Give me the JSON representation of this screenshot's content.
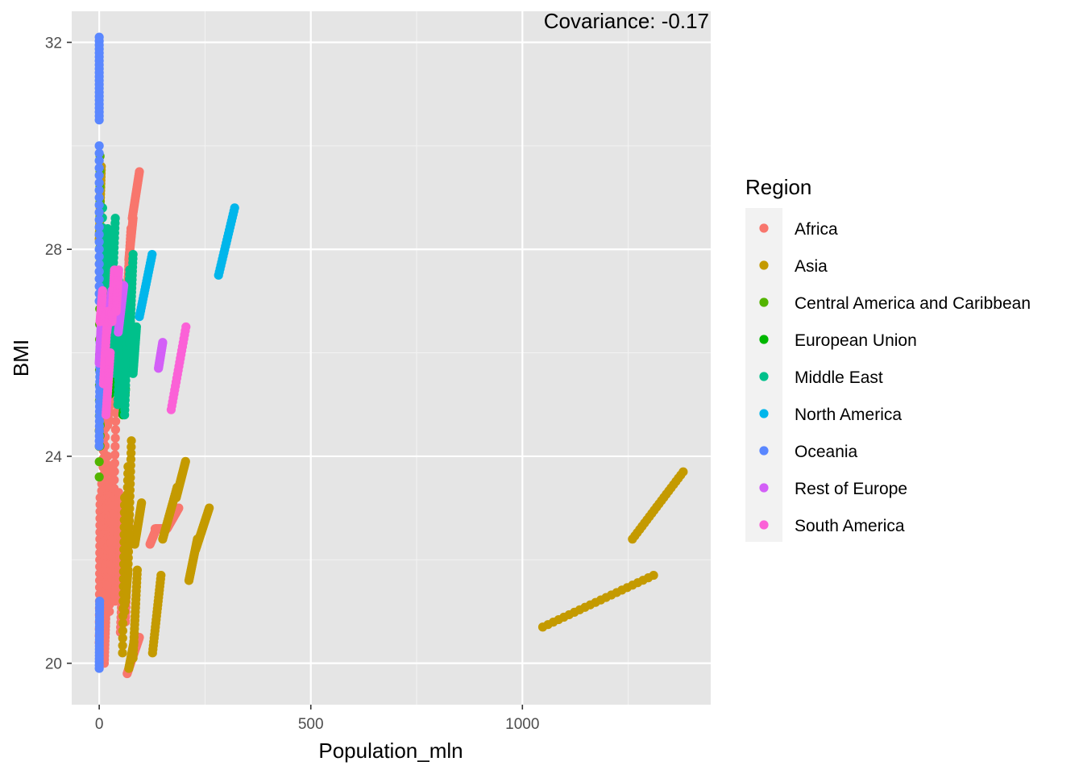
{
  "chart_data": {
    "type": "scatter",
    "title": "",
    "xlabel": "Population_mln",
    "ylabel": "BMI",
    "xlim": [
      -65,
      1445
    ],
    "ylim": [
      19.2,
      32.6
    ],
    "x_ticks": [
      0,
      500,
      1000
    ],
    "x_tick_labels": [
      "0",
      "500",
      "1000"
    ],
    "y_ticks": [
      20,
      24,
      28,
      32
    ],
    "y_tick_labels": [
      "20",
      "24",
      "28",
      "32"
    ],
    "grid": true,
    "panel_background": "#e5e5e5",
    "annotation": "Covariance: -0.17",
    "legend": {
      "title": "Region",
      "placement": "right"
    },
    "series": [
      {
        "name": "Africa",
        "color": "#F8766D",
        "segments": [
          {
            "x": [
              0,
              2
            ],
            "y": [
              20.4,
              23.2
            ]
          },
          {
            "x": [
              3,
              6
            ],
            "y": [
              20.8,
              23.6
            ]
          },
          {
            "x": [
              6,
              10
            ],
            "y": [
              21.2,
              24.6
            ]
          },
          {
            "x": [
              10,
              16
            ],
            "y": [
              21.8,
              25.4
            ]
          },
          {
            "x": [
              14,
              20
            ],
            "y": [
              20.6,
              24.0
            ]
          },
          {
            "x": [
              18,
              24
            ],
            "y": [
              21.4,
              23.4
            ]
          },
          {
            "x": [
              24,
              32
            ],
            "y": [
              21.0,
              23.8
            ]
          },
          {
            "x": [
              30,
              40
            ],
            "y": [
              21.6,
              25.0
            ]
          },
          {
            "x": [
              38,
              46
            ],
            "y": [
              21.2,
              23.3
            ]
          },
          {
            "x": [
              45,
              55
            ],
            "y": [
              21.4,
              23.2
            ]
          },
          {
            "x": [
              50,
              60
            ],
            "y": [
              20.6,
              22.6
            ]
          },
          {
            "x": [
              56,
              66
            ],
            "y": [
              21.8,
              23.0
            ]
          },
          {
            "x": [
              62,
              70
            ],
            "y": [
              20.8,
              22.8
            ]
          },
          {
            "x": [
              10,
              22
            ],
            "y": [
              25.0,
              26.8
            ]
          },
          {
            "x": [
              20,
              34
            ],
            "y": [
              24.6,
              26.2
            ]
          },
          {
            "x": [
              25,
              35
            ],
            "y": [
              25.6,
              27.4
            ]
          },
          {
            "x": [
              65,
              75
            ],
            "y": [
              27.0,
              28.4
            ]
          },
          {
            "x": [
              70,
              80
            ],
            "y": [
              27.8,
              28.6
            ]
          },
          {
            "x": [
              78,
              95
            ],
            "y": [
              28.6,
              29.5
            ]
          },
          {
            "x": [
              66,
              95
            ],
            "y": [
              19.8,
              20.5
            ]
          },
          {
            "x": [
              120,
              135
            ],
            "y": [
              22.3,
              22.6
            ]
          },
          {
            "x": [
              132,
              150
            ],
            "y": [
              22.6,
              22.6
            ]
          },
          {
            "x": [
              160,
              188
            ],
            "y": [
              22.6,
              23.0
            ]
          },
          {
            "x": [
              12,
              18
            ],
            "y": [
              20.0,
              21.5
            ]
          }
        ]
      },
      {
        "name": "Asia",
        "color": "#C49A00",
        "segments": [
          {
            "x": [
              55,
              60
            ],
            "y": [
              20.2,
              23.2
            ]
          },
          {
            "x": [
              60,
              68
            ],
            "y": [
              21.0,
              23.8
            ]
          },
          {
            "x": [
              62,
              68
            ],
            "y": [
              21.2,
              21.8
            ]
          },
          {
            "x": [
              68,
              76
            ],
            "y": [
              21.8,
              24.3
            ]
          },
          {
            "x": [
              70,
              82
            ],
            "y": [
              19.9,
              20.4
            ]
          },
          {
            "x": [
              80,
              90
            ],
            "y": [
              20.1,
              21.8
            ]
          },
          {
            "x": [
              84,
              100
            ],
            "y": [
              22.3,
              23.1
            ]
          },
          {
            "x": [
              126,
              146
            ],
            "y": [
              20.2,
              21.7
            ]
          },
          {
            "x": [
              150,
              184
            ],
            "y": [
              22.4,
              23.4
            ]
          },
          {
            "x": [
              182,
              204
            ],
            "y": [
              23.2,
              23.9
            ]
          },
          {
            "x": [
              212,
              232
            ],
            "y": [
              21.6,
              22.4
            ]
          },
          {
            "x": [
              228,
              260
            ],
            "y": [
              22.2,
              23.0
            ]
          },
          {
            "x": [
              1048,
              1310
            ],
            "y": [
              20.7,
              21.7
            ]
          },
          {
            "x": [
              1260,
              1380
            ],
            "y": [
              22.4,
              23.7
            ]
          },
          {
            "x": [
              0,
              40
            ],
            "y": [
              24.5,
              27.4
            ]
          },
          {
            "x": [
              20,
              60
            ],
            "y": [
              25.2,
              26.8
            ]
          },
          {
            "x": [
              0,
              5
            ],
            "y": [
              28.2,
              29.6
            ]
          }
        ]
      },
      {
        "name": "Central America and Caribbean",
        "color": "#53B400",
        "segments": [
          {
            "x": [
              0,
              2
            ],
            "y": [
              23.6,
              29.8
            ]
          },
          {
            "x": [
              2,
              6
            ],
            "y": [
              24.2,
              28.4
            ]
          },
          {
            "x": [
              5,
              12
            ],
            "y": [
              25.4,
              27.6
            ]
          },
          {
            "x": [
              10,
              18
            ],
            "y": [
              26.0,
              27.4
            ]
          }
        ]
      },
      {
        "name": "European Union",
        "color": "#00B700",
        "segments": [
          {
            "x": [
              5,
              12
            ],
            "y": [
              25.0,
              27.4
            ]
          },
          {
            "x": [
              8,
              18
            ],
            "y": [
              25.4,
              26.8
            ]
          },
          {
            "x": [
              14,
              30
            ],
            "y": [
              25.6,
              27.0
            ]
          },
          {
            "x": [
              25,
              40
            ],
            "y": [
              25.2,
              26.4
            ]
          },
          {
            "x": [
              36,
              52
            ],
            "y": [
              25.4,
              26.5
            ]
          },
          {
            "x": [
              56,
              62
            ],
            "y": [
              24.8,
              25.3
            ]
          },
          {
            "x": [
              62,
              68
            ],
            "y": [
              25.6,
              27.2
            ]
          },
          {
            "x": [
              80,
              84
            ],
            "y": [
              25.7,
              26.3
            ]
          },
          {
            "x": [
              40,
              55
            ],
            "y": [
              25.8,
              26.9
            ]
          }
        ]
      },
      {
        "name": "Middle East",
        "color": "#00C08B",
        "segments": [
          {
            "x": [
              2,
              8
            ],
            "y": [
              24.8,
              28.8
            ]
          },
          {
            "x": [
              6,
              14
            ],
            "y": [
              25.4,
              28.0
            ]
          },
          {
            "x": [
              12,
              20
            ],
            "y": [
              26.6,
              28.4
            ]
          },
          {
            "x": [
              20,
              30
            ],
            "y": [
              26.0,
              28.0
            ]
          },
          {
            "x": [
              28,
              38
            ],
            "y": [
              26.6,
              28.6
            ]
          },
          {
            "x": [
              36,
              46
            ],
            "y": [
              25.6,
              27.4
            ]
          },
          {
            "x": [
              44,
              52
            ],
            "y": [
              25.0,
              27.0
            ]
          },
          {
            "x": [
              60,
              68
            ],
            "y": [
              24.8,
              26.8
            ]
          },
          {
            "x": [
              64,
              72
            ],
            "y": [
              25.8,
              27.6
            ]
          },
          {
            "x": [
              72,
              80
            ],
            "y": [
              26.2,
              27.9
            ]
          },
          {
            "x": [
              80,
              88
            ],
            "y": [
              25.6,
              26.5
            ]
          }
        ]
      },
      {
        "name": "North America",
        "color": "#00B6EB",
        "segments": [
          {
            "x": [
              95,
              125
            ],
            "y": [
              26.7,
              27.9
            ]
          },
          {
            "x": [
              282,
              320
            ],
            "y": [
              27.5,
              28.8
            ]
          }
        ]
      },
      {
        "name": "Oceania",
        "color": "#5A87FF",
        "segments": [
          {
            "x": [
              0,
              0
            ],
            "y": [
              30.5,
              32.1
            ]
          },
          {
            "x": [
              0,
              0
            ],
            "y": [
              27.0,
              30.0
            ]
          },
          {
            "x": [
              0,
              2
            ],
            "y": [
              24.2,
              26.2
            ]
          },
          {
            "x": [
              0,
              1
            ],
            "y": [
              19.9,
              21.2
            ]
          }
        ]
      },
      {
        "name": "Rest of Europe",
        "color": "#D35FF7",
        "segments": [
          {
            "x": [
              0,
              5
            ],
            "y": [
              25.8,
              26.6
            ]
          },
          {
            "x": [
              18,
              30
            ],
            "y": [
              26.4,
              27.2
            ]
          },
          {
            "x": [
              45,
              58
            ],
            "y": [
              26.4,
              27.3
            ]
          },
          {
            "x": [
              140,
              150
            ],
            "y": [
              25.7,
              26.2
            ]
          }
        ]
      },
      {
        "name": "South America",
        "color": "#FB61D7",
        "segments": [
          {
            "x": [
              10,
              20
            ],
            "y": [
              25.4,
              26.8
            ]
          },
          {
            "x": [
              16,
              26
            ],
            "y": [
              24.8,
              26.0
            ]
          },
          {
            "x": [
              30,
              36
            ],
            "y": [
              26.6,
              27.6
            ]
          },
          {
            "x": [
              40,
              46
            ],
            "y": [
              26.8,
              27.6
            ]
          },
          {
            "x": [
              170,
              205
            ],
            "y": [
              24.9,
              26.5
            ]
          },
          {
            "x": [
              2,
              8
            ],
            "y": [
              26.6,
              27.2
            ]
          }
        ]
      }
    ]
  }
}
